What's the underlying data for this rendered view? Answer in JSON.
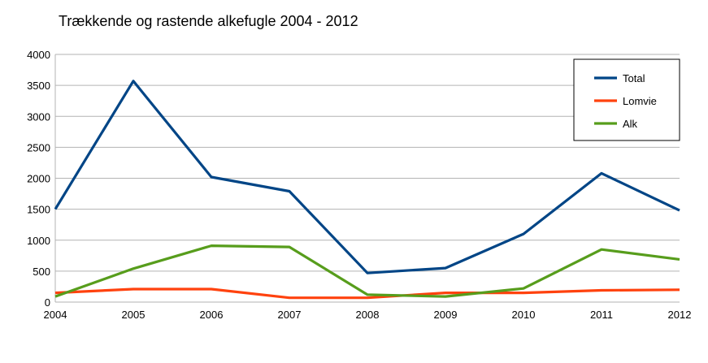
{
  "chart_data": {
    "type": "line",
    "title": "Trækkende og rastende alkefugle 2004 - 2012",
    "xlabel": "",
    "ylabel": "",
    "x": [
      "2004",
      "2005",
      "2006",
      "2007",
      "2008",
      "2009",
      "2010",
      "2011",
      "2012"
    ],
    "ylim": [
      0,
      4000
    ],
    "yticks": [
      "0",
      "500",
      "1000",
      "1500",
      "2000",
      "2500",
      "3000",
      "3500",
      "4000"
    ],
    "grid": true,
    "legend_position": "top-right",
    "series": [
      {
        "name": "Total",
        "color": "#004586",
        "values": [
          1500,
          3570,
          2020,
          1790,
          470,
          550,
          1100,
          2080,
          1480
        ]
      },
      {
        "name": "Lomvie",
        "color": "#ff420e",
        "values": [
          150,
          210,
          210,
          70,
          70,
          150,
          150,
          190,
          200
        ]
      },
      {
        "name": "Alk",
        "color": "#579d1c",
        "values": [
          90,
          540,
          910,
          890,
          120,
          90,
          220,
          850,
          690
        ]
      }
    ]
  }
}
